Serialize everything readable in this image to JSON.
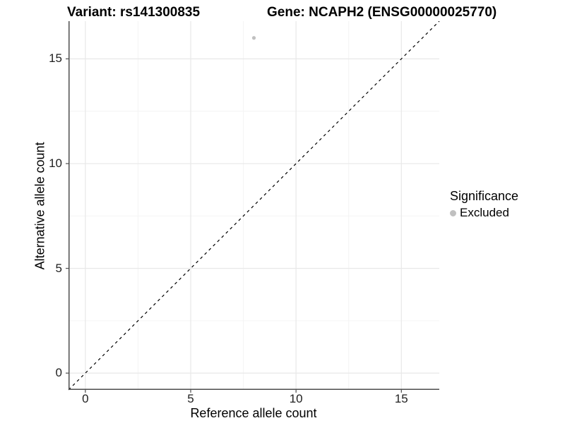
{
  "titles": {
    "variant": "Variant: rs141300835",
    "gene": "Gene: NCAPH2 (ENSG00000025770)"
  },
  "chart_data": {
    "type": "scatter",
    "xlabel": "Reference allele count",
    "ylabel": "Alternative allele count",
    "xlim": [
      -0.8,
      16.8
    ],
    "ylim": [
      -0.8,
      16.8
    ],
    "x_ticks": [
      0,
      5,
      10,
      15
    ],
    "y_ticks": [
      0,
      5,
      10,
      15
    ],
    "x_minor_ticks": [
      2.5,
      7.5,
      12.5
    ],
    "y_minor_ticks": [
      2.5,
      7.5,
      12.5
    ],
    "grid": true,
    "points": [
      {
        "x": 8,
        "y": 16,
        "series": "Excluded"
      }
    ],
    "point_color": "#c0c0c0",
    "point_radius_px": 2.6,
    "reference_line": {
      "type": "identity",
      "slope": 1,
      "intercept": 0,
      "style": "dashed",
      "color": "#000000"
    },
    "legend": {
      "title": "Significance",
      "position": "right",
      "entries": [
        {
          "label": "Excluded",
          "color": "#c0c0c0",
          "marker": "point"
        }
      ]
    }
  },
  "colors": {
    "background": "#ffffff",
    "grid_major": "#e8e8e8",
    "grid_minor": "#f4f4f4",
    "axis_line": "#4d4d4d",
    "tick_mark": "#4d4d4d",
    "tick_text": "#1f1f1f",
    "title_text": "#000000"
  }
}
